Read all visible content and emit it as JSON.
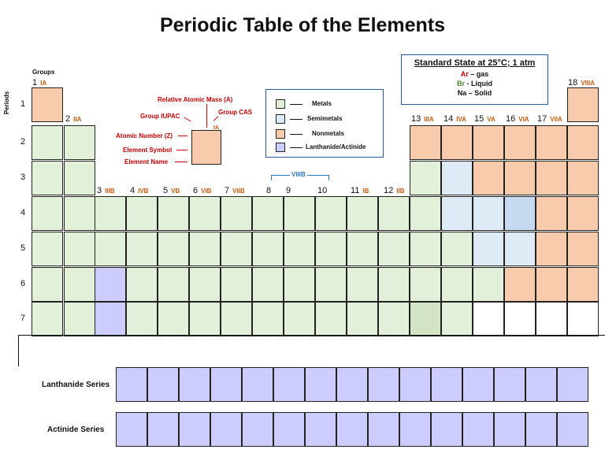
{
  "title": "Periodic Table of the Elements",
  "labels": {
    "groups": "Groups",
    "periods": "Periods"
  },
  "groups": [
    {
      "num": "1",
      "roman": "IA"
    },
    {
      "num": "2",
      "roman": "IIA"
    },
    {
      "num": "3",
      "roman": "IIIB"
    },
    {
      "num": "4",
      "roman": "IVB"
    },
    {
      "num": "5",
      "roman": "VB"
    },
    {
      "num": "6",
      "roman": "VIB"
    },
    {
      "num": "7",
      "roman": "VIIB"
    },
    {
      "num": "8",
      "roman": ""
    },
    {
      "num": "9",
      "roman": ""
    },
    {
      "num": "10",
      "roman": ""
    },
    {
      "num": "11",
      "roman": "IB"
    },
    {
      "num": "12",
      "roman": "IIB"
    },
    {
      "num": "13",
      "roman": "IIIA"
    },
    {
      "num": "14",
      "roman": "IVA"
    },
    {
      "num": "15",
      "roman": "VA"
    },
    {
      "num": "16",
      "roman": "VIA"
    },
    {
      "num": "17",
      "roman": "VIIA"
    },
    {
      "num": "18",
      "roman": "VIIIA"
    }
  ],
  "viiib_label": "VIIIB",
  "periods": [
    "1",
    "2",
    "3",
    "4",
    "5",
    "6",
    "7"
  ],
  "key_cell": {
    "relative_atomic_mass": "Relative Atomic Mass (A)",
    "group_iupac": "Group IUPAC",
    "group_cas": "Group CAS",
    "atomic_number": "Atomic Number (Z)",
    "element_symbol": "Element Symbol",
    "element_name": "Element Name",
    "cell_group_label": "IA"
  },
  "legend": {
    "metals": "Metals",
    "semimetals": "Semimetals",
    "nonmetals": "Nonmetals",
    "lanthanide_actinide": "Lanthanide/Actinide"
  },
  "standard_state": {
    "heading": "Standard State at 25°C; 1 atm",
    "gas_symbol": "Ar",
    "gas_text": " – gas",
    "liquid_symbol": "Br",
    "liquid_text": " - Liquid",
    "solid_symbol": "Na",
    "solid_text": " – Solid"
  },
  "series": {
    "lanthanide": "Lanthanide Series",
    "actinide": "Actinide Series"
  },
  "colors": {
    "metal": "#e2efd9",
    "semimetal": "#deebf7",
    "nonmetal": "#f8cbad",
    "lanthanide_actinide": "#ccccff",
    "group_roman": "#c55a11",
    "key_labels": "#c00000",
    "liquid": "#548235",
    "legend_border": "#2f5597"
  },
  "table": {
    "rows": [
      [
        "nonmetal",
        "",
        "",
        "",
        "",
        "",
        "",
        "",
        "",
        "",
        "",
        "",
        "",
        "",
        "",
        "",
        "",
        "nonmetal"
      ],
      [
        "metal",
        "metal",
        "",
        "",
        "",
        "",
        "",
        "",
        "",
        "",
        "",
        "",
        "nonmetal",
        "nonmetal",
        "nonmetal",
        "nonmetal",
        "nonmetal",
        "nonmetal"
      ],
      [
        "metal",
        "metal",
        "",
        "",
        "",
        "",
        "",
        "",
        "",
        "",
        "",
        "",
        "metal",
        "semi",
        "nonmetal",
        "nonmetal",
        "nonmetal",
        "nonmetal"
      ],
      [
        "metal",
        "metal",
        "metal",
        "metal",
        "metal",
        "metal",
        "metal",
        "metal",
        "metal",
        "metal",
        "metal",
        "metal",
        "metal",
        "semi",
        "semi",
        "semi-dark",
        "nonmetal",
        "nonmetal"
      ],
      [
        "metal",
        "metal",
        "metal",
        "metal",
        "metal",
        "metal",
        "metal",
        "metal",
        "metal",
        "metal",
        "metal",
        "metal",
        "metal",
        "metal",
        "semi",
        "semi",
        "nonmetal",
        "nonmetal"
      ],
      [
        "metal",
        "metal",
        "lanth",
        "metal",
        "metal",
        "metal",
        "metal",
        "metal",
        "metal",
        "metal",
        "metal",
        "metal",
        "metal",
        "metal",
        "metal",
        "nonmetal",
        "nonmetal",
        "nonmetal"
      ],
      [
        "metal",
        "metal",
        "lanth",
        "metal",
        "metal",
        "metal",
        "metal",
        "metal",
        "metal",
        "metal",
        "metal",
        "metal",
        "metal-dark",
        "metal",
        "empty",
        "empty",
        "empty",
        "empty"
      ]
    ],
    "lanthanide_count": 15,
    "actinide_count": 15
  }
}
